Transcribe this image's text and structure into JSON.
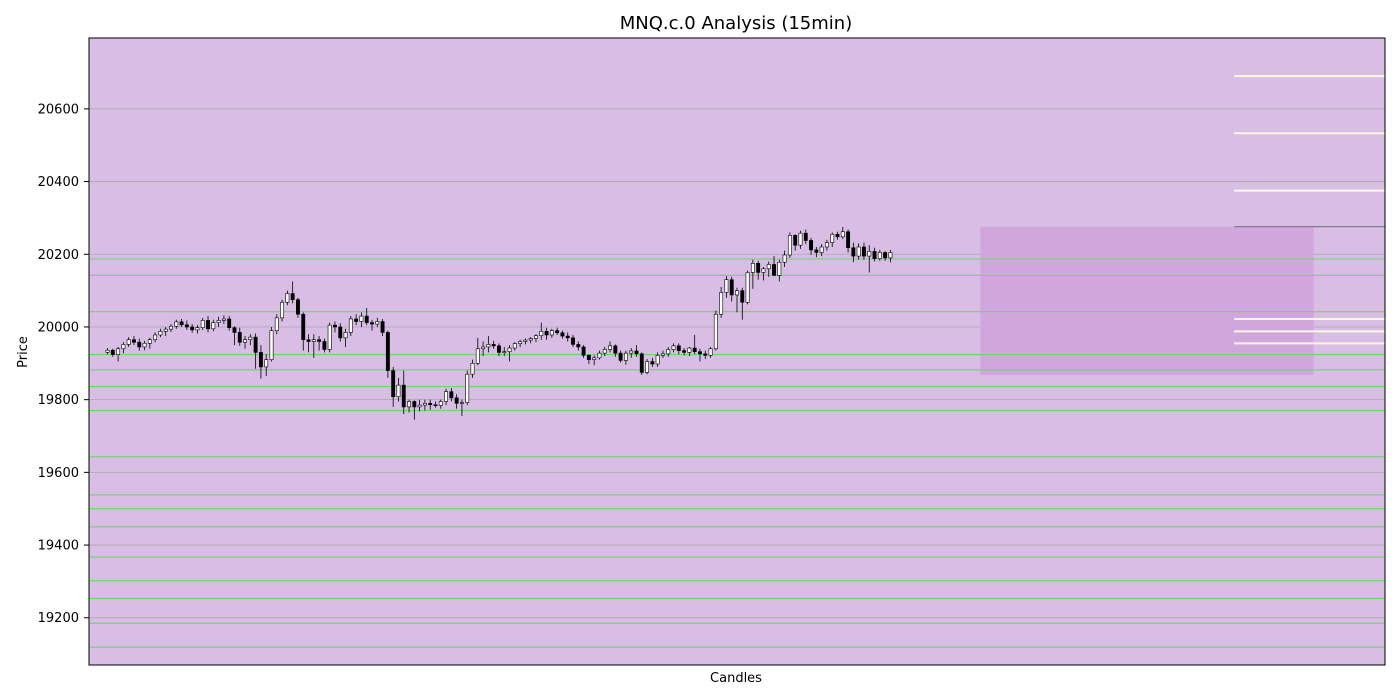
{
  "chart_data": {
    "type": "candlestick",
    "title": "MNQ.c.0 Analysis (15min)",
    "xlabel": "Candles",
    "ylabel": "Price",
    "ylim": [
      19070,
      20795
    ],
    "xlim": [
      -3.5,
      241.5
    ],
    "yticks": [
      19200,
      19400,
      19600,
      19800,
      20000,
      20200,
      20400,
      20600
    ],
    "show_xticks": false,
    "grid": "horizontal",
    "colors": {
      "plot_background": "#d8bde5",
      "zone": "#cfa3dc",
      "support_line": "#6fd36f",
      "grid": "#a9a9a9",
      "bull_body": "#ffffff",
      "bear_body": "#000000",
      "wick": "#000000",
      "target_line": "#fff8e1",
      "zone_top_line": "#808080"
    },
    "zone": {
      "x_start": 165,
      "x_end": 228,
      "y_low": 19868,
      "y_high": 20276
    },
    "zone_top_line": {
      "x_start": 213,
      "x_end": 241.5,
      "y": 20276
    },
    "target_lines": [
      {
        "x_start": 213,
        "x_end": 241.5,
        "y": 20690
      },
      {
        "x_start": 213,
        "x_end": 241.5,
        "y": 20533
      },
      {
        "x_start": 213,
        "x_end": 241.5,
        "y": 20375
      },
      {
        "x_start": 213,
        "x_end": 241.5,
        "y": 20022
      },
      {
        "x_start": 213,
        "x_end": 241.5,
        "y": 19988
      },
      {
        "x_start": 213,
        "x_end": 241.5,
        "y": 19955
      }
    ],
    "support_lines": [
      20187,
      20142,
      20042,
      19924,
      19882,
      19836,
      19770,
      19643,
      19538,
      19500,
      19450,
      19367,
      19302,
      19253,
      19185,
      19119
    ],
    "candles": [
      [
        19930,
        19942,
        19925,
        19936
      ],
      [
        19936,
        19940,
        19918,
        19924
      ],
      [
        19924,
        19945,
        19905,
        19940
      ],
      [
        19940,
        19958,
        19928,
        19952
      ],
      [
        19952,
        19972,
        19945,
        19965
      ],
      [
        19965,
        19975,
        19950,
        19958
      ],
      [
        19958,
        19968,
        19935,
        19945
      ],
      [
        19945,
        19962,
        19936,
        19955
      ],
      [
        19955,
        19970,
        19940,
        19965
      ],
      [
        19965,
        19985,
        19958,
        19978
      ],
      [
        19978,
        19995,
        19972,
        19988
      ],
      [
        19988,
        20000,
        19975,
        19994
      ],
      [
        19994,
        20008,
        19986,
        20002
      ],
      [
        20002,
        20020,
        19995,
        20014
      ],
      [
        20014,
        20022,
        20000,
        20006
      ],
      [
        20006,
        20018,
        19992,
        20000
      ],
      [
        20000,
        20008,
        19984,
        19992
      ],
      [
        19992,
        20005,
        19982,
        19998
      ],
      [
        19998,
        20025,
        19992,
        20018
      ],
      [
        20018,
        20030,
        19985,
        19995
      ],
      [
        19995,
        20020,
        19988,
        20012
      ],
      [
        20012,
        20028,
        20000,
        20018
      ],
      [
        20018,
        20032,
        20008,
        20022
      ],
      [
        20022,
        20030,
        19990,
        19998
      ],
      [
        19998,
        20002,
        19950,
        19985
      ],
      [
        19985,
        19998,
        19948,
        19958
      ],
      [
        19958,
        19975,
        19940,
        19965
      ],
      [
        19965,
        19980,
        19950,
        19972
      ],
      [
        19972,
        19982,
        19885,
        19930
      ],
      [
        19930,
        19950,
        19858,
        19890
      ],
      [
        19890,
        19925,
        19865,
        19910
      ],
      [
        19910,
        20000,
        19905,
        19990
      ],
      [
        19990,
        20035,
        19980,
        20025
      ],
      [
        20025,
        20075,
        20015,
        20068
      ],
      [
        20068,
        20100,
        20060,
        20092
      ],
      [
        20092,
        20125,
        20065,
        20075
      ],
      [
        20075,
        20080,
        20025,
        20035
      ],
      [
        20035,
        20040,
        19935,
        19965
      ],
      [
        19965,
        19980,
        19930,
        19960
      ],
      [
        19960,
        19980,
        19915,
        19965
      ],
      [
        19965,
        19975,
        19935,
        19960
      ],
      [
        19960,
        19968,
        19930,
        19938
      ],
      [
        19938,
        20012,
        19930,
        20005
      ],
      [
        20005,
        20015,
        19985,
        20000
      ],
      [
        20000,
        20010,
        19960,
        19970
      ],
      [
        19970,
        19995,
        19945,
        19985
      ],
      [
        19985,
        20030,
        19975,
        20022
      ],
      [
        20022,
        20035,
        20005,
        20015
      ],
      [
        20015,
        20040,
        20000,
        20030
      ],
      [
        20030,
        20052,
        20005,
        20012
      ],
      [
        20012,
        20020,
        19990,
        20008
      ],
      [
        20008,
        20025,
        20000,
        20015
      ],
      [
        20015,
        20022,
        19975,
        19985
      ],
      [
        19985,
        19990,
        19860,
        19880
      ],
      [
        19880,
        19890,
        19780,
        19808
      ],
      [
        19808,
        19860,
        19795,
        19840
      ],
      [
        19840,
        19880,
        19760,
        19780
      ],
      [
        19780,
        19800,
        19765,
        19795
      ],
      [
        19795,
        19798,
        19745,
        19780
      ],
      [
        19780,
        19800,
        19768,
        19785
      ],
      [
        19785,
        19800,
        19770,
        19790
      ],
      [
        19790,
        19800,
        19772,
        19786
      ],
      [
        19786,
        19795,
        19778,
        19784
      ],
      [
        19784,
        19800,
        19775,
        19795
      ],
      [
        19795,
        19830,
        19785,
        19822
      ],
      [
        19822,
        19832,
        19795,
        19805
      ],
      [
        19805,
        19815,
        19775,
        19790
      ],
      [
        19790,
        19800,
        19755,
        19792
      ],
      [
        19792,
        19880,
        19785,
        19870
      ],
      [
        19870,
        19910,
        19860,
        19900
      ],
      [
        19900,
        19970,
        19895,
        19940
      ],
      [
        19940,
        19960,
        19920,
        19945
      ],
      [
        19945,
        19975,
        19930,
        19952
      ],
      [
        19952,
        19962,
        19940,
        19948
      ],
      [
        19948,
        19955,
        19920,
        19930
      ],
      [
        19930,
        19945,
        19920,
        19932
      ],
      [
        19932,
        19950,
        19905,
        19942
      ],
      [
        19942,
        19958,
        19935,
        19954
      ],
      [
        19954,
        19965,
        19945,
        19960
      ],
      [
        19960,
        19968,
        19952,
        19964
      ],
      [
        19964,
        19972,
        19955,
        19968
      ],
      [
        19968,
        19980,
        19958,
        19976
      ],
      [
        19976,
        20012,
        19965,
        19988
      ],
      [
        19988,
        19998,
        19965,
        19978
      ],
      [
        19978,
        19995,
        19970,
        19990
      ],
      [
        19990,
        19998,
        19978,
        19984
      ],
      [
        19984,
        19990,
        19968,
        19975
      ],
      [
        19975,
        19985,
        19960,
        19970
      ],
      [
        19970,
        19978,
        19945,
        19952
      ],
      [
        19952,
        19960,
        19935,
        19945
      ],
      [
        19945,
        19950,
        19915,
        19922
      ],
      [
        19922,
        19925,
        19898,
        19910
      ],
      [
        19910,
        19922,
        19895,
        19915
      ],
      [
        19915,
        19935,
        19910,
        19928
      ],
      [
        19928,
        19945,
        19920,
        19938
      ],
      [
        19938,
        19960,
        19930,
        19948
      ],
      [
        19948,
        19952,
        19918,
        19928
      ],
      [
        19928,
        19935,
        19902,
        19908
      ],
      [
        19908,
        19935,
        19896,
        19928
      ],
      [
        19928,
        19942,
        19915,
        19934
      ],
      [
        19934,
        19950,
        19918,
        19926
      ],
      [
        19926,
        19930,
        19868,
        19875
      ],
      [
        19875,
        19912,
        19870,
        19905
      ],
      [
        19905,
        19915,
        19890,
        19898
      ],
      [
        19898,
        19930,
        19890,
        19922
      ],
      [
        19922,
        19935,
        19915,
        19926
      ],
      [
        19926,
        19945,
        19918,
        19938
      ],
      [
        19938,
        19955,
        19930,
        19948
      ],
      [
        19948,
        19955,
        19925,
        19935
      ],
      [
        19935,
        19942,
        19922,
        19930
      ],
      [
        19930,
        19945,
        19920,
        19942
      ],
      [
        19942,
        19978,
        19925,
        19932
      ],
      [
        19932,
        19940,
        19905,
        19926
      ],
      [
        19926,
        19935,
        19912,
        19922
      ],
      [
        19922,
        19945,
        19915,
        19940
      ],
      [
        19940,
        20045,
        19935,
        20035
      ],
      [
        20035,
        20110,
        20025,
        20095
      ],
      [
        20095,
        20140,
        20080,
        20130
      ],
      [
        20130,
        20138,
        20070,
        20088
      ],
      [
        20088,
        20108,
        20040,
        20100
      ],
      [
        20100,
        20108,
        20020,
        20068
      ],
      [
        20068,
        20155,
        20062,
        20150
      ],
      [
        20150,
        20185,
        20105,
        20175
      ],
      [
        20175,
        20182,
        20130,
        20150
      ],
      [
        20150,
        20165,
        20128,
        20160
      ],
      [
        20160,
        20180,
        20138,
        20172
      ],
      [
        20172,
        20195,
        20140,
        20142
      ],
      [
        20142,
        20185,
        20125,
        20178
      ],
      [
        20178,
        20210,
        20165,
        20198
      ],
      [
        20198,
        20260,
        20190,
        20252
      ],
      [
        20252,
        20255,
        20210,
        20225
      ],
      [
        20225,
        20265,
        20215,
        20258
      ],
      [
        20258,
        20268,
        20228,
        20238
      ],
      [
        20238,
        20245,
        20198,
        20212
      ],
      [
        20212,
        20220,
        20192,
        20205
      ],
      [
        20205,
        20228,
        20195,
        20220
      ],
      [
        20220,
        20240,
        20210,
        20232
      ],
      [
        20232,
        20260,
        20220,
        20255
      ],
      [
        20255,
        20262,
        20240,
        20248
      ],
      [
        20248,
        20275,
        20242,
        20262
      ],
      [
        20262,
        20268,
        20205,
        20218
      ],
      [
        20218,
        20232,
        20178,
        20195
      ],
      [
        20195,
        20230,
        20185,
        20220
      ],
      [
        20220,
        20232,
        20185,
        20195
      ],
      [
        20195,
        20225,
        20150,
        20208
      ],
      [
        20208,
        20218,
        20180,
        20188
      ],
      [
        20188,
        20212,
        20182,
        20205
      ],
      [
        20205,
        20208,
        20182,
        20190
      ],
      [
        20190,
        20212,
        20178,
        20205
      ]
    ]
  }
}
